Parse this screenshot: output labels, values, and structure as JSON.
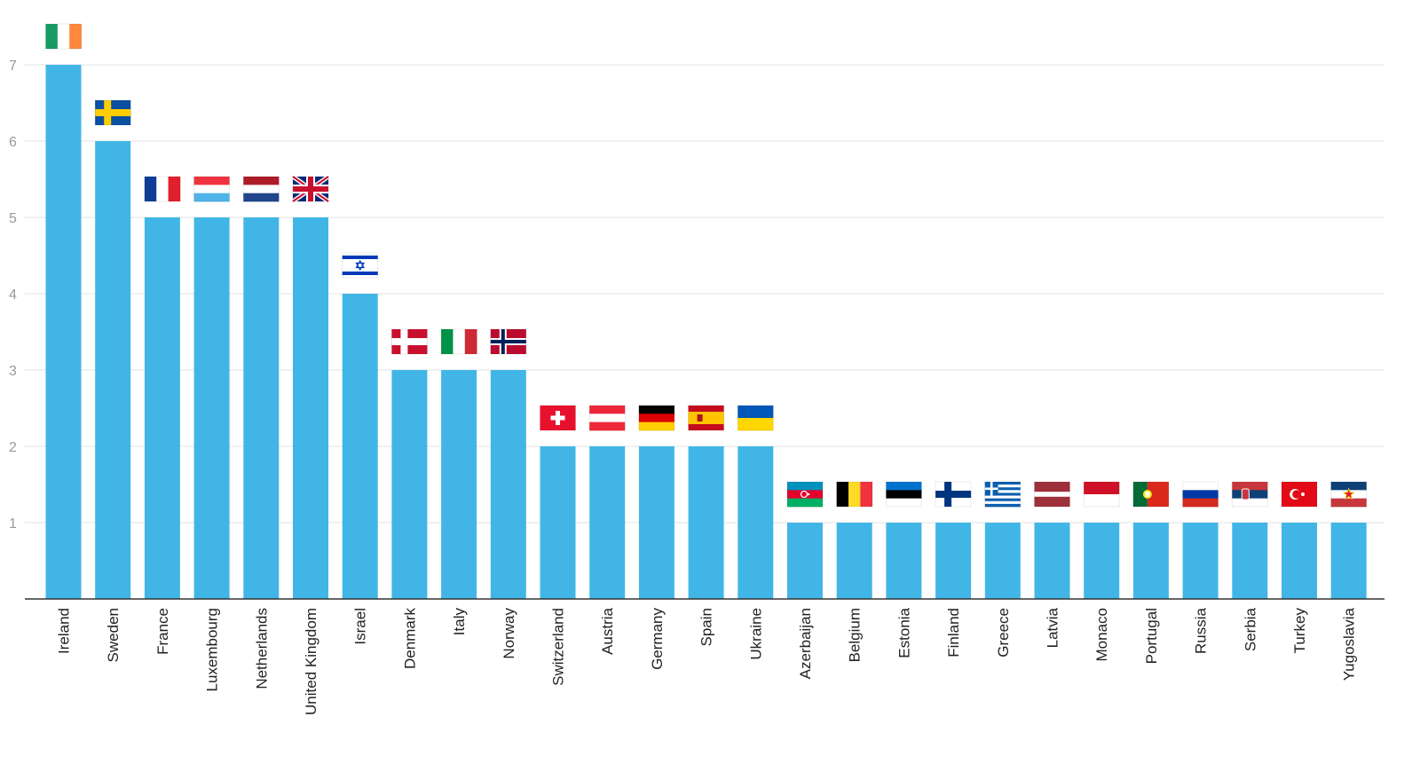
{
  "chart_data": {
    "type": "bar",
    "categories": [
      "Ireland",
      "Sweden",
      "France",
      "Luxembourg",
      "Netherlands",
      "United Kingdom",
      "Israel",
      "Denmark",
      "Italy",
      "Norway",
      "Switzerland",
      "Austria",
      "Germany",
      "Spain",
      "Ukraine",
      "Azerbaijan",
      "Belgium",
      "Estonia",
      "Finland",
      "Greece",
      "Latvia",
      "Monaco",
      "Portugal",
      "Russia",
      "Serbia",
      "Turkey",
      "Yugoslavia"
    ],
    "values": [
      7,
      6,
      5,
      5,
      5,
      5,
      4,
      3,
      3,
      3,
      2,
      2,
      2,
      2,
      2,
      1,
      1,
      1,
      1,
      1,
      1,
      1,
      1,
      1,
      1,
      1,
      1
    ],
    "flags": [
      "ireland-flag",
      "sweden-flag",
      "france-flag",
      "luxembourg-flag",
      "netherlands-flag",
      "united-kingdom-flag",
      "israel-flag",
      "denmark-flag",
      "italy-flag",
      "norway-flag",
      "switzerland-flag",
      "austria-flag",
      "germany-flag",
      "spain-flag",
      "ukraine-flag",
      "azerbaijan-flag",
      "belgium-flag",
      "estonia-flag",
      "finland-flag",
      "greece-flag",
      "latvia-flag",
      "monaco-flag",
      "portugal-flag",
      "russia-flag",
      "serbia-flag",
      "turkey-flag",
      "yugoslavia-flag"
    ],
    "ylim": [
      0,
      7
    ],
    "yticks": [
      1,
      2,
      3,
      4,
      5,
      6,
      7
    ],
    "grid": true,
    "bar_color": "#41b6e6",
    "title": "",
    "xlabel": "",
    "ylabel": ""
  }
}
